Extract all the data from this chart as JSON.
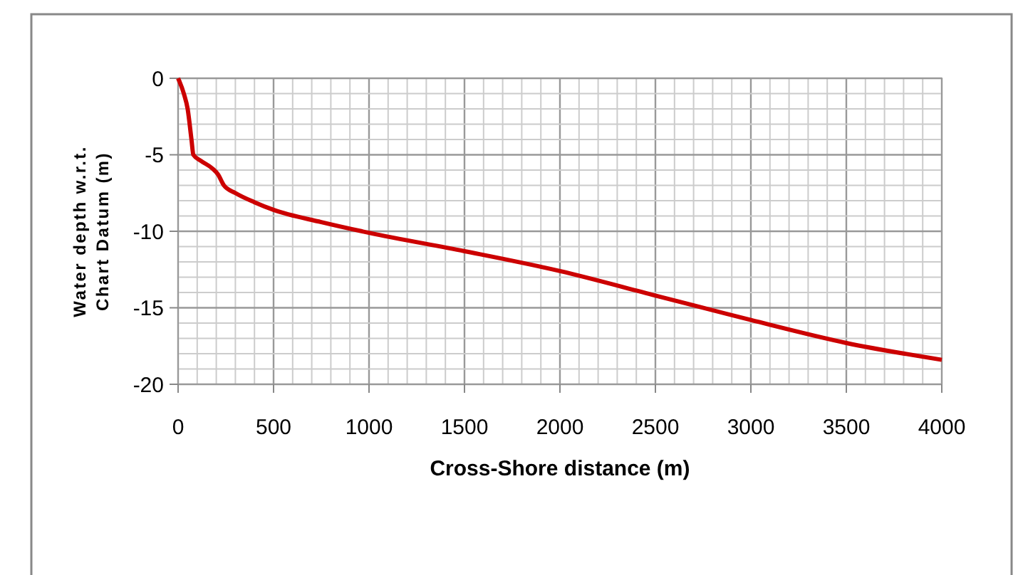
{
  "chart_data": {
    "type": "line",
    "xlabel": "Cross-Shore distance (m)",
    "ylabel": "Water depth w.r.t. Chart Datum (m)",
    "x": [
      0,
      30,
      50,
      70,
      80,
      120,
      180,
      210,
      240,
      300,
      400,
      500,
      750,
      1000,
      1500,
      2000,
      2500,
      3000,
      3500,
      4000
    ],
    "series": [
      {
        "color": "#cc0000",
        "values": [
          0,
          -1,
          -2,
          -4,
          -5,
          -5.4,
          -5.9,
          -6.3,
          -7,
          -7.5,
          -8.1,
          -8.6,
          -9.4,
          -10.1,
          -11.3,
          -12.6,
          -14.2,
          -15.8,
          -17.3,
          -18.4
        ]
      }
    ],
    "xlim": [
      0,
      4000
    ],
    "ylim": [
      -20,
      0
    ],
    "xticks": [
      0,
      {
        "value": 100,
        "label": null
      },
      {
        "value": 200,
        "label": null
      },
      {
        "value": 300,
        "label": null
      },
      {
        "value": 400,
        "label": null
      },
      500,
      {
        "value": 600,
        "label": null
      },
      {
        "value": 700,
        "label": null
      },
      {
        "value": 800,
        "label": null
      },
      {
        "value": 900,
        "label": null
      },
      1000,
      {
        "value": 1100,
        "label": null
      },
      {
        "value": 1200,
        "label": null
      },
      {
        "value": 1300,
        "label": null
      },
      {
        "value": 1400,
        "label": null
      },
      1500,
      {
        "value": 1600,
        "label": null
      },
      {
        "value": 1700,
        "label": null
      },
      {
        "value": 1800,
        "label": null
      },
      {
        "value": 1900,
        "label": null
      },
      2000,
      {
        "value": 2100,
        "label": null
      },
      {
        "value": 2200,
        "label": null
      },
      {
        "value": 2300,
        "label": null
      },
      {
        "value": 2400,
        "label": null
      },
      2500,
      {
        "value": 2600,
        "label": null
      },
      {
        "value": 2700,
        "label": null
      },
      {
        "value": 2800,
        "label": null
      },
      {
        "value": 2900,
        "label": null
      },
      3000,
      {
        "value": 3100,
        "label": null
      },
      {
        "value": 3200,
        "label": null
      },
      {
        "value": 3300,
        "label": null
      },
      {
        "value": 3400,
        "label": null
      },
      3500,
      {
        "value": 3600,
        "label": null
      },
      {
        "value": 3700,
        "label": null
      },
      {
        "value": 3800,
        "label": null
      },
      {
        "value": 3900,
        "label": null
      },
      4000
    ],
    "yticks": [
      -20,
      {
        "value": -19,
        "label": null
      },
      {
        "value": -18,
        "label": null
      },
      {
        "value": -17,
        "label": null
      },
      {
        "value": -16,
        "label": null
      },
      -15,
      {
        "value": -14,
        "label": null
      },
      {
        "value": -13,
        "label": null
      },
      {
        "value": -12,
        "label": null
      },
      {
        "value": -11,
        "label": null
      },
      -10,
      {
        "value": -9,
        "label": null
      },
      {
        "value": -8,
        "label": null
      },
      {
        "value": -7,
        "label": null
      },
      {
        "value": -6,
        "label": null
      },
      -5,
      {
        "value": -4,
        "label": null
      },
      {
        "value": -3,
        "label": null
      },
      {
        "value": -2,
        "label": null
      },
      {
        "value": -1,
        "label": null
      },
      0
    ],
    "grid": true,
    "marker": "none",
    "line_style": "solid"
  }
}
